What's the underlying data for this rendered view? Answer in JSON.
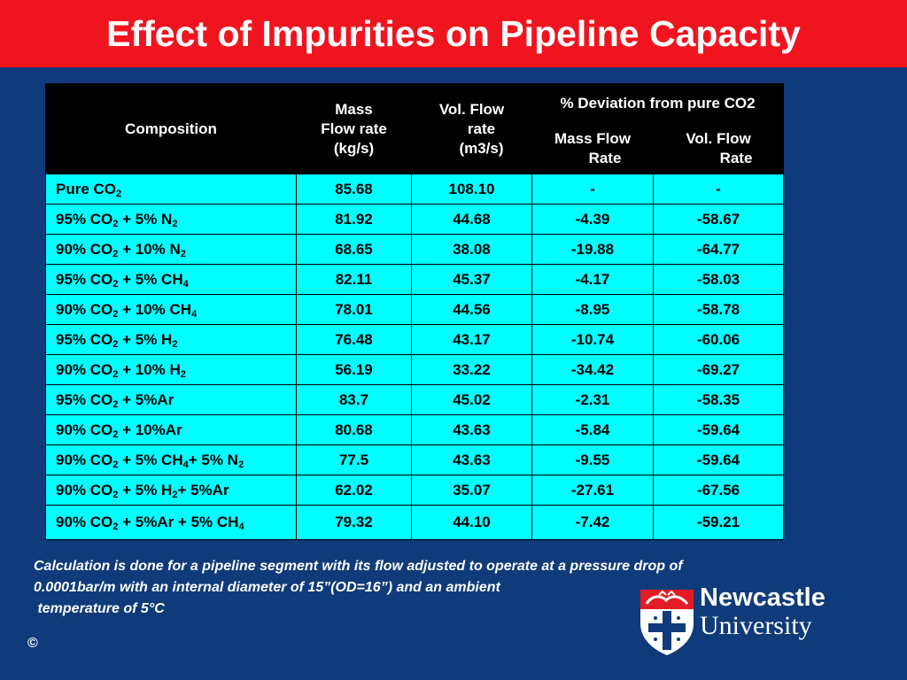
{
  "title": "Effect of Impurities on Pipeline Capacity",
  "table": {
    "headers": {
      "composition": "Composition",
      "mass_flow": [
        "Mass",
        "Flow rate",
        "(kg/s)"
      ],
      "vol_flow": [
        "Vol. Flow",
        "rate",
        "(m3/s)"
      ],
      "deviation_group": "% Deviation from pure CO2",
      "dev_mass": [
        "Mass Flow",
        "Rate"
      ],
      "dev_vol": [
        "Vol. Flow",
        "Rate"
      ]
    },
    "rows": [
      {
        "comp": [
          {
            "t": "Pure CO"
          },
          {
            "s": "2"
          }
        ],
        "mass": "85.68",
        "vol": "108.10",
        "dmass": "-",
        "dvol": "-"
      },
      {
        "comp": [
          {
            "t": "95% CO"
          },
          {
            "s": "2"
          },
          {
            "t": " + 5% N"
          },
          {
            "s": "2"
          }
        ],
        "mass": "81.92",
        "vol": "44.68",
        "dmass": "-4.39",
        "dvol": "-58.67"
      },
      {
        "comp": [
          {
            "t": "90% CO"
          },
          {
            "s": "2"
          },
          {
            "t": " + 10% N"
          },
          {
            "s": "2"
          }
        ],
        "mass": "68.65",
        "vol": "38.08",
        "dmass": "-19.88",
        "dvol": "-64.77"
      },
      {
        "comp": [
          {
            "t": "95% CO"
          },
          {
            "s": "2"
          },
          {
            "t": " + 5% CH"
          },
          {
            "s": "4"
          }
        ],
        "mass": "82.11",
        "vol": "45.37",
        "dmass": "-4.17",
        "dvol": "-58.03"
      },
      {
        "comp": [
          {
            "t": "90% CO"
          },
          {
            "s": "2"
          },
          {
            "t": " + 10% CH"
          },
          {
            "s": "4"
          }
        ],
        "mass": "78.01",
        "vol": "44.56",
        "dmass": "-8.95",
        "dvol": "-58.78"
      },
      {
        "comp": [
          {
            "t": "95% CO"
          },
          {
            "s": "2"
          },
          {
            "t": " + 5% H"
          },
          {
            "s": "2"
          }
        ],
        "mass": "76.48",
        "vol": "43.17",
        "dmass": "-10.74",
        "dvol": "-60.06"
      },
      {
        "comp": [
          {
            "t": "90% CO"
          },
          {
            "s": "2"
          },
          {
            "t": " + 10% H"
          },
          {
            "s": "2"
          }
        ],
        "mass": "56.19",
        "vol": "33.22",
        "dmass": "-34.42",
        "dvol": "-69.27"
      },
      {
        "comp": [
          {
            "t": "95% CO"
          },
          {
            "s": "2"
          },
          {
            "t": " + 5%Ar"
          }
        ],
        "mass": "83.7",
        "vol": "45.02",
        "dmass": "-2.31",
        "dvol": "-58.35"
      },
      {
        "comp": [
          {
            "t": "90% CO"
          },
          {
            "s": "2"
          },
          {
            "t": " + 10%Ar"
          }
        ],
        "mass": "80.68",
        "vol": "43.63",
        "dmass": "-5.84",
        "dvol": "-59.64"
      },
      {
        "comp": [
          {
            "t": "90% CO"
          },
          {
            "s": "2"
          },
          {
            "t": " + 5% CH"
          },
          {
            "s": "4"
          },
          {
            "t": "+ 5% N"
          },
          {
            "s": "2"
          }
        ],
        "mass": "77.5",
        "vol": "43.63",
        "dmass": "-9.55",
        "dvol": "-59.64"
      },
      {
        "comp": [
          {
            "t": "90% CO"
          },
          {
            "s": "2"
          },
          {
            "t": " + 5% H"
          },
          {
            "s": "2"
          },
          {
            "t": "+ 5%Ar"
          }
        ],
        "mass": "62.02",
        "vol": "35.07",
        "dmass": "-27.61",
        "dvol": "-67.56"
      },
      {
        "comp": [
          {
            "t": "90% CO"
          },
          {
            "s": "2"
          },
          {
            "t": " + 5%Ar + 5% CH"
          },
          {
            "s": "4"
          }
        ],
        "mass": "79.32",
        "vol": "44.10",
        "dmass": "-7.42",
        "dvol": "-59.21"
      }
    ]
  },
  "note": [
    "Calculation is done for a pipeline segment with its flow adjusted to operate at a pressure drop of",
    "0.0001bar/m with an internal diameter of 15”(OD=16”) and an ambient",
    " temperature of 5°C"
  ],
  "copyright": "©",
  "logo": {
    "line1": "Newcastle",
    "line2": "University"
  },
  "colors": {
    "title_bar": "#f0141e",
    "background": "#0f3b7a",
    "cell": "#00ffff",
    "header": "#000000"
  }
}
